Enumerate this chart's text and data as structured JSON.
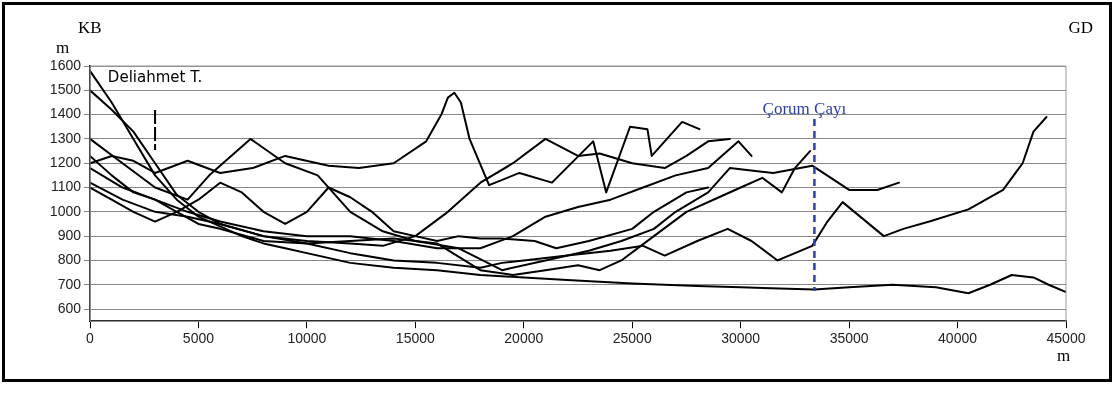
{
  "chart_data": {
    "type": "line",
    "xlabel": "m",
    "ylabel": "m",
    "annotations": [
      "KB",
      "GD"
    ],
    "xlim": [
      0,
      45000
    ],
    "xticks": [
      0,
      5000,
      10000,
      15000,
      20000,
      25000,
      30000,
      35000,
      40000,
      45000
    ],
    "ylim": [
      550,
      1600
    ],
    "yticks": [
      600,
      700,
      800,
      900,
      1000,
      1100,
      1200,
      1300,
      1400,
      1500,
      1600
    ],
    "grid": "y",
    "legend": false,
    "marker": "none",
    "line_style": "solid",
    "ref_lines": [
      {
        "axis": "x",
        "value": 3000,
        "label": "Deliahmet T.",
        "color": "#000000",
        "line_style": "dashed"
      },
      {
        "axis": "x",
        "value": 33400,
        "label": "Çorum Çayı",
        "color": "#2a3fb8",
        "line_style": "dashed"
      }
    ],
    "series": [
      {
        "color": "#000000",
        "x": [
          0,
          1000,
          2000,
          3000,
          4000,
          5000,
          6000,
          7000,
          8000,
          9000,
          10000,
          12000,
          14000,
          16000,
          18000,
          20000,
          22000,
          25000,
          28000,
          30000,
          33400,
          35000,
          37000,
          39000,
          40500,
          41500,
          42500,
          43500,
          44200,
          45000
        ],
        "values": [
          1580,
          1450,
          1300,
          1150,
          1050,
          980,
          940,
          900,
          870,
          850,
          830,
          790,
          770,
          760,
          740,
          730,
          720,
          705,
          695,
          690,
          680,
          690,
          700,
          690,
          665,
          700,
          740,
          730,
          700,
          670
        ]
      },
      {
        "color": "#000000",
        "x": [
          0,
          1000,
          2000,
          3000,
          4000,
          5000,
          6000,
          8000,
          10000,
          12000,
          14000,
          16000,
          18000,
          19000,
          20000,
          22000,
          24000,
          25500,
          26500,
          28000,
          29400,
          30500,
          31700,
          33300,
          34000,
          34700,
          36600,
          37500,
          38700,
          40500,
          42100,
          43000,
          43500,
          44100
        ],
        "values": [
          1500,
          1420,
          1330,
          1200,
          1070,
          1000,
          950,
          900,
          870,
          830,
          800,
          790,
          770,
          790,
          800,
          820,
          840,
          860,
          820,
          880,
          930,
          880,
          800,
          860,
          960,
          1040,
          900,
          930,
          960,
          1010,
          1090,
          1200,
          1330,
          1390
        ]
      },
      {
        "color": "#000000",
        "x": [
          0,
          1000,
          2000,
          3000,
          4500,
          6000,
          7500,
          9000,
          11000,
          12400,
          14000,
          15500,
          16200,
          16500,
          16800,
          17100,
          17500,
          18400,
          19800,
          21300,
          23200,
          23800,
          24900,
          25700,
          25900,
          27300,
          28100
        ],
        "values": [
          1200,
          1230,
          1210,
          1160,
          1210,
          1160,
          1180,
          1230,
          1190,
          1180,
          1200,
          1290,
          1400,
          1470,
          1490,
          1450,
          1300,
          1110,
          1160,
          1120,
          1290,
          1080,
          1350,
          1340,
          1230,
          1370,
          1340
        ]
      },
      {
        "color": "#000000",
        "x": [
          0,
          1500,
          3000,
          4500,
          5500,
          7400,
          9000,
          10500,
          12000,
          13500,
          15000,
          17000,
          19000,
          21000,
          23000,
          24500,
          26000,
          27000,
          28500,
          29500,
          31500,
          33300,
          35000,
          36300,
          37300
        ],
        "values": [
          1300,
          1200,
          1100,
          1050,
          1150,
          1300,
          1200,
          1150,
          1000,
          920,
          880,
          850,
          760,
          800,
          840,
          880,
          930,
          1000,
          1080,
          1180,
          1160,
          1190,
          1090,
          1090,
          1120
        ]
      },
      {
        "color": "#000000",
        "x": [
          0,
          1000,
          2000,
          3000,
          4000,
          5000,
          6000,
          8000,
          10000,
          12000,
          14000,
          16000,
          18000,
          19500,
          21000,
          22500,
          23500,
          24500,
          26000,
          27500,
          29000,
          30000,
          31000,
          31900,
          32500,
          33200
        ],
        "values": [
          1230,
          1150,
          1080,
          1050,
          1000,
          950,
          930,
          880,
          870,
          880,
          890,
          870,
          760,
          740,
          760,
          780,
          760,
          800,
          900,
          1000,
          1060,
          1100,
          1140,
          1080,
          1180,
          1250
        ]
      },
      {
        "color": "#000000",
        "x": [
          0,
          1500,
          3000,
          4500,
          6000,
          8000,
          10000,
          12000,
          14000,
          16000,
          18000,
          19500,
          21000,
          22500,
          24000,
          25500,
          27000,
          28500,
          29900,
          30500
        ],
        "values": [
          1180,
          1100,
          1050,
          1000,
          960,
          920,
          900,
          900,
          880,
          850,
          850,
          900,
          980,
          1020,
          1050,
          1100,
          1150,
          1180,
          1290,
          1230
        ]
      },
      {
        "color": "#000000",
        "x": [
          0,
          1500,
          3000,
          4500,
          6000,
          8000,
          10000,
          12000,
          13500,
          15000,
          16500,
          18000,
          19500,
          21000,
          22500,
          23500,
          25000,
          26500,
          27500,
          28500,
          29500
        ],
        "values": [
          1120,
          1050,
          1000,
          980,
          950,
          900,
          880,
          870,
          860,
          900,
          1000,
          1120,
          1200,
          1300,
          1230,
          1240,
          1200,
          1180,
          1230,
          1290,
          1300
        ]
      },
      {
        "color": "#000000",
        "x": [
          0,
          1000,
          2000,
          3000,
          4000,
          5000,
          6000,
          7000,
          8000,
          9000,
          10000,
          11000,
          12000,
          13000,
          14000,
          15000,
          16000,
          17000,
          18000,
          19000,
          20500,
          21500,
          23000,
          25000,
          26000,
          27500,
          28500
        ],
        "values": [
          1100,
          1050,
          1000,
          960,
          1000,
          1050,
          1120,
          1080,
          1000,
          950,
          1000,
          1100,
          1060,
          1000,
          920,
          900,
          880,
          900,
          890,
          890,
          880,
          850,
          880,
          930,
          1000,
          1080,
          1100
        ]
      }
    ]
  }
}
